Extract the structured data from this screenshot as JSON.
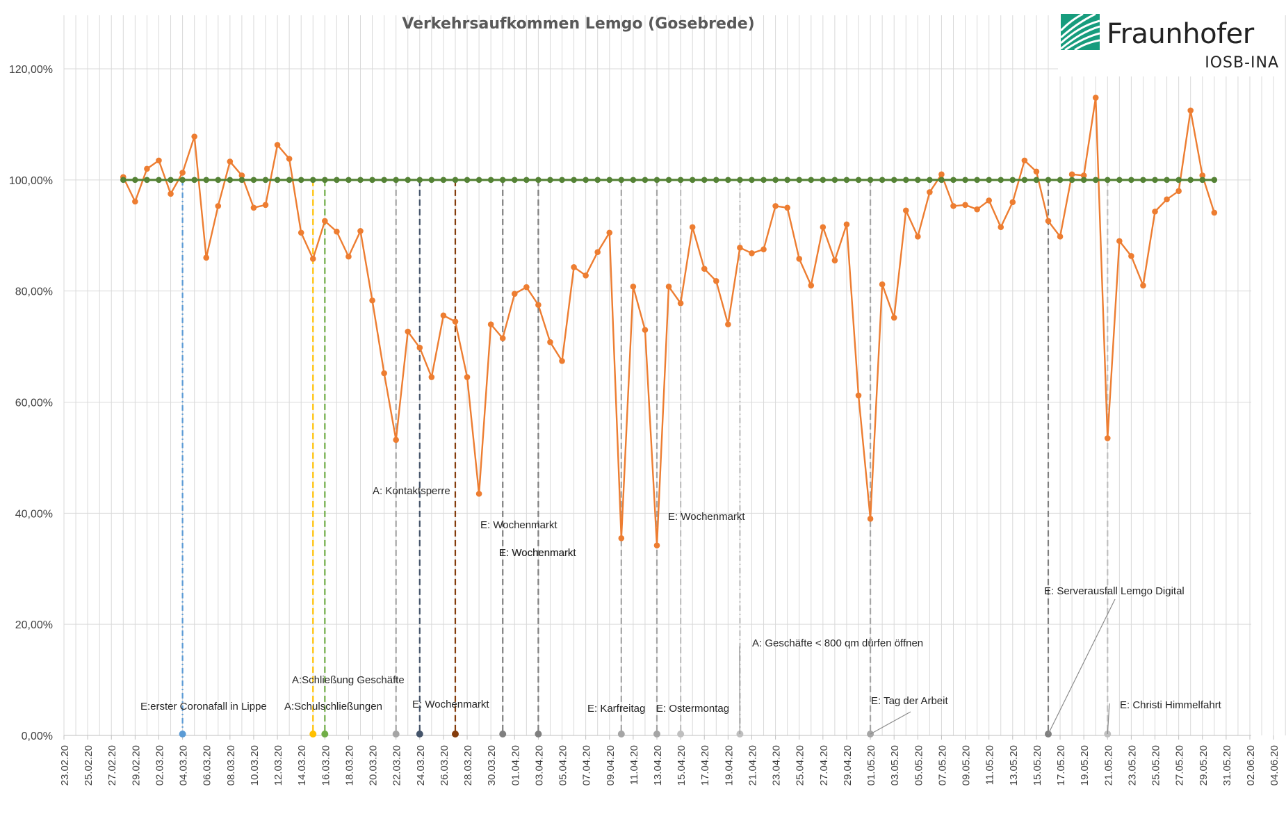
{
  "chart_data": {
    "type": "line",
    "title": "Verkehrsaufkommen Lemgo (Gosebrede)",
    "xlabel": "",
    "ylabel": "",
    "y_tick_labels": [
      "0,00%",
      "20,00%",
      "40,00%",
      "60,00%",
      "80,00%",
      "100,00%",
      "120,00%"
    ],
    "ylim": [
      0,
      1.2
    ],
    "grid": true,
    "x_tick_labels": [
      "23.02.20",
      "25.02.20",
      "27.02.20",
      "29.02.20",
      "02.03.20",
      "04.03.20",
      "06.03.20",
      "08.03.20",
      "10.03.20",
      "12.03.20",
      "14.03.20",
      "16.03.20",
      "18.03.20",
      "20.03.20",
      "22.03.20",
      "24.03.20",
      "26.03.20",
      "28.03.20",
      "30.03.20",
      "01.04.20",
      "03.04.20",
      "05.04.20",
      "07.04.20",
      "09.04.20",
      "11.04.20",
      "13.04.20",
      "15.04.20",
      "17.04.20",
      "19.04.20",
      "21.04.20",
      "23.04.20",
      "25.04.20",
      "27.04.20",
      "29.04.20",
      "01.05.20",
      "03.05.20",
      "05.05.20",
      "07.05.20",
      "09.05.20",
      "11.05.20",
      "13.05.20",
      "15.05.20",
      "17.05.20",
      "19.05.20",
      "21.05.20",
      "23.05.20",
      "25.05.20",
      "27.05.20",
      "29.05.20",
      "31.05.20",
      "02.06.20",
      "04.06.20"
    ],
    "start_date": "23.02.20",
    "series": [
      {
        "name": "",
        "color": "#ED7D31",
        "start_day": 5,
        "values": [
          1.005,
          0.961,
          1.02,
          1.035,
          0.975,
          1.013,
          1.078,
          0.86,
          0.953,
          1.033,
          1.008,
          0.95,
          0.955,
          1.063,
          1.038,
          0.905,
          0.858,
          0.926,
          0.907,
          0.862,
          0.908,
          0.783,
          0.652,
          0.532,
          0.727,
          0.698,
          0.645,
          0.756,
          0.745,
          0.645,
          0.435,
          0.74,
          0.715,
          0.795,
          0.807,
          0.775,
          0.708,
          0.674,
          0.843,
          0.828,
          0.87,
          0.905,
          0.355,
          0.808,
          0.73,
          0.342,
          0.808,
          0.778,
          0.915,
          0.84,
          0.818,
          0.74,
          0.878,
          0.868,
          0.875,
          0.953,
          0.95,
          0.858,
          0.81,
          0.915,
          0.855,
          0.92,
          0.612,
          0.39,
          0.812,
          0.752,
          0.945,
          0.898,
          0.978,
          1.01,
          0.953,
          0.955,
          0.947,
          0.963,
          0.915,
          0.96,
          1.035,
          1.015,
          0.926,
          0.898,
          1.01,
          1.008,
          1.148,
          0.535,
          0.89,
          0.863,
          0.81,
          0.943,
          0.965,
          0.98,
          1.125,
          1.008,
          0.941
        ]
      },
      {
        "name": "",
        "color": "#548235",
        "start_day": 5,
        "constant": 1.0,
        "count": 93
      }
    ],
    "annotations": [
      {
        "text": "E:erster Coronafall in Lippe",
        "date": "04.03.20",
        "color": "#5B9BD5",
        "style": "dashdot"
      },
      {
        "text": "A:Schließung Geschäfte",
        "date": "15.03.20",
        "color": "#FFC000",
        "style": "dash"
      },
      {
        "text": "A:Schulschließungen",
        "date": "16.03.20",
        "color": "#70AD47",
        "style": "dash"
      },
      {
        "text": "A: Kontaktsperre",
        "date": "22.03.20",
        "color": "#A5A5A5",
        "style": "dash"
      },
      {
        "text": "E: Wochenmarkt",
        "date": "24.03.20",
        "color": "#44546A",
        "style": "dash"
      },
      {
        "text": "E: Wochenmarkt",
        "date": "27.03.20",
        "color": "#843C0C",
        "style": "dash"
      },
      {
        "text": "E: Wochenmarkt",
        "date": "31.03.20",
        "color": "#7F7F7F",
        "style": "dash"
      },
      {
        "text": "E: Wochenmarkt",
        "date": "03.04.20",
        "color": "#7F7F7F",
        "style": "dash"
      },
      {
        "text": "E: Karfreitag",
        "date": "10.04.20",
        "color": "#A5A5A5",
        "style": "dash"
      },
      {
        "text": "E: Ostermontag",
        "date": "13.04.20",
        "color": "#A5A5A5",
        "style": "dash"
      },
      {
        "text": "E: Wochenmarkt",
        "date": "15.04.20",
        "color": "#BFBFBF",
        "style": "dash"
      },
      {
        "text": "A: Geschäfte < 800 qm dürfen öffnen",
        "date": "20.04.20",
        "color": "#BFBFBF",
        "style": "dashdot"
      },
      {
        "text": "E: Tag der Arbeit",
        "date": "01.05.20",
        "color": "#A5A5A5",
        "style": "dash"
      },
      {
        "text": "E: Serverausfall Lemgo Digital",
        "date": "16.05.20",
        "color": "#7F7F7F",
        "style": "dash"
      },
      {
        "text": "E: Christi Himmelfahrt",
        "date": "21.05.20",
        "color": "#BFBFBF",
        "style": "dash"
      }
    ]
  },
  "logo": {
    "name": "Fraunhofer",
    "sub": "IOSB-INA",
    "color": "#179C7D"
  }
}
